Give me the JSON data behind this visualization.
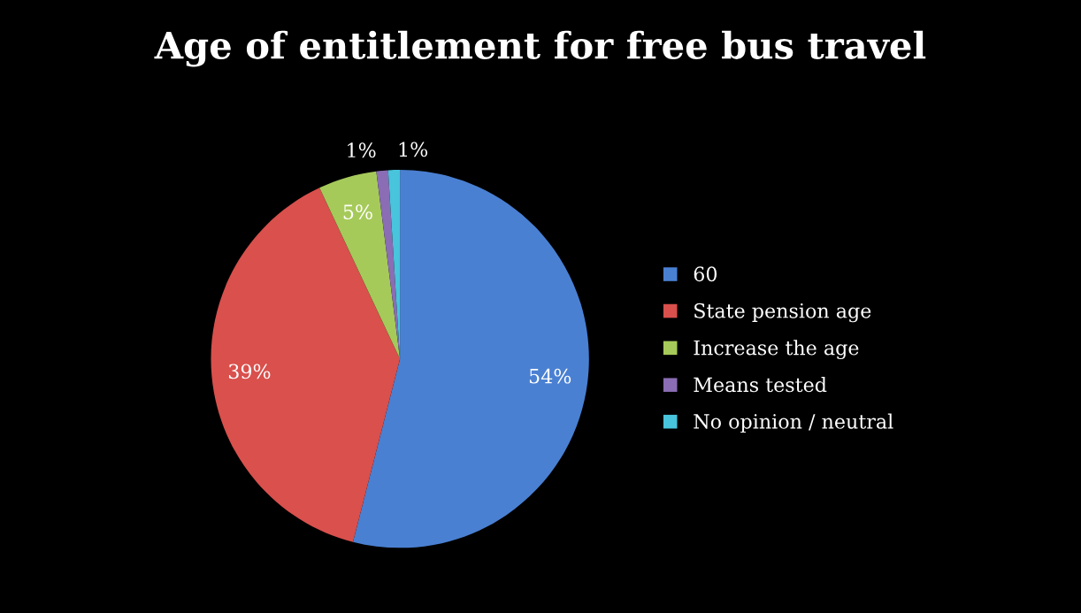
{
  "chart_data": {
    "type": "pie",
    "title": "Age of entitlement for free bus travel",
    "categories": [
      "60",
      "State pension age",
      "Increase the age",
      "Means tested",
      "No opinion / neutral"
    ],
    "values": [
      54,
      39,
      5,
      1,
      1
    ],
    "colors": [
      "#4a80d2",
      "#d9504c",
      "#a6ca5a",
      "#8a6db4",
      "#48c4dc"
    ],
    "value_labels": [
      "54%",
      "39%",
      "5%",
      "1%",
      "1%"
    ],
    "legend": "right"
  }
}
